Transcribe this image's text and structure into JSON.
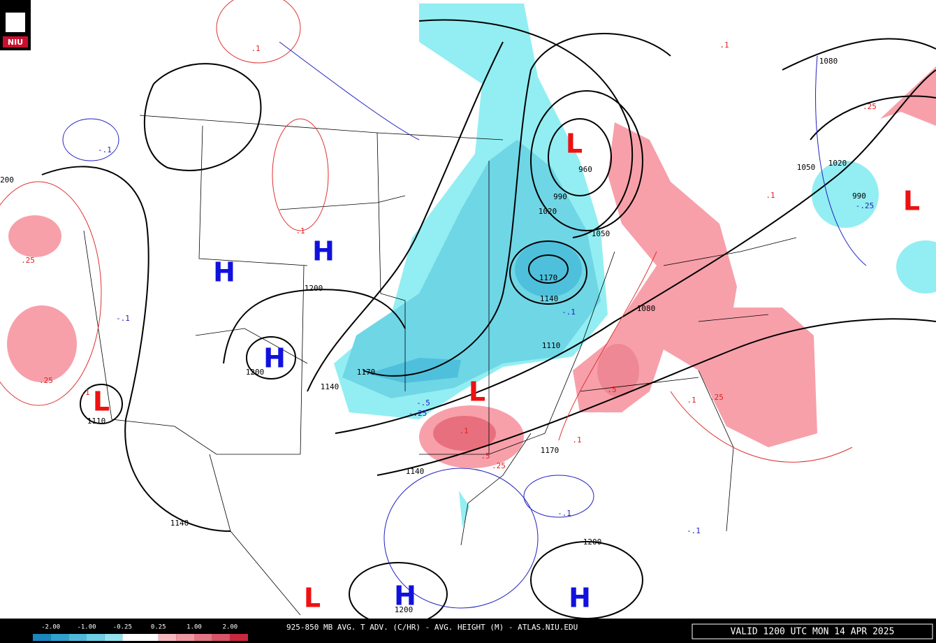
{
  "logo": "NIU",
  "centers": [
    "L",
    "L",
    "L",
    "L",
    "L",
    "H",
    "H",
    "H",
    "H",
    "H"
  ],
  "height_labels": [
    "1080",
    "1050",
    "1020",
    "990",
    "960",
    "990",
    "1020",
    "1050",
    "1170",
    "1140",
    "1080",
    "1110",
    "1170",
    "1200",
    "1200",
    "1140",
    "1110",
    "1140",
    "1170",
    "1140",
    "1200",
    "1200",
    "200"
  ],
  "advection_labels": [
    ".1",
    ".1",
    ".25",
    ".25",
    ".1",
    ".1",
    "-.1",
    "-.1",
    "-.5",
    "-.25",
    ".1",
    ".5",
    ".25",
    ".5",
    ".1",
    ".25",
    ".1",
    ".1",
    "-.1",
    "-.1",
    "-.25",
    ".25",
    "-.1"
  ],
  "colorbar": {
    "labels": [
      "-2.00",
      "-1.00",
      "-0.25",
      "0.25",
      "1.00",
      "2.00"
    ],
    "colors": [
      "#1a86bd",
      "#31a0cc",
      "#4fb8d9",
      "#6fcde4",
      "#92e3ef",
      "#ffffff",
      "#ffffff",
      "#f7b8c0",
      "#ee98a2",
      "#e27684",
      "#d85468",
      "#c8283c"
    ]
  },
  "caption": "925-850 MB AVG. T ADV. (C/HR) - AVG. HEIGHT (M) - ATLAS.NIU.EDU",
  "valid": "VALID 1200 UTC MON 14 APR 2025"
}
